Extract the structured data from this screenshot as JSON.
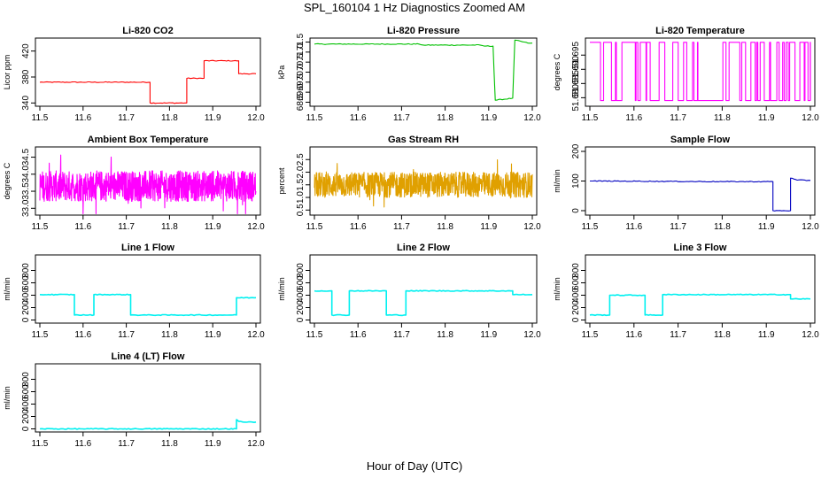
{
  "main_title": "SPL_160104  1 Hz Diagnostics Zoomed AM",
  "x_axis_label": "Hour of Day (UTC)",
  "chart_data": [
    {
      "type": "line",
      "title": "Li-820 CO2",
      "ylabel": "Licor ppm",
      "color": "#ff0000",
      "xlim": [
        11.5,
        12.0
      ],
      "ylim": [
        335,
        440
      ],
      "yticks": [
        "340",
        "380",
        "420"
      ],
      "xticks": [
        "11.5",
        "11.6",
        "11.7",
        "11.8",
        "11.9",
        "12.0"
      ],
      "series": [
        {
          "x": [
            11.5,
            11.755,
            11.755,
            11.84,
            11.84,
            11.88,
            11.88,
            11.96,
            11.96,
            12.0
          ],
          "y": [
            372,
            372,
            340,
            340,
            378,
            378,
            405,
            405,
            385,
            385
          ]
        }
      ]
    },
    {
      "type": "line",
      "title": "Li-820 Pressure",
      "ylabel": "kPa",
      "color": "#00c000",
      "xlim": [
        11.5,
        12.0
      ],
      "ylim": [
        68.3,
        71.7
      ],
      "yticks": [
        "68.5",
        "69.0",
        "69.5",
        "70.0",
        "70.5",
        "71.0",
        "71.5"
      ],
      "xticks": [
        "11.5",
        "11.6",
        "11.7",
        "11.8",
        "11.9",
        "12.0"
      ],
      "series": [
        {
          "x": [
            11.5,
            11.74,
            11.75,
            11.88,
            11.89,
            11.91,
            11.915,
            11.955,
            11.96,
            11.99,
            12.0
          ],
          "y": [
            71.4,
            71.4,
            71.35,
            71.35,
            71.3,
            71.3,
            68.6,
            68.7,
            71.6,
            71.45,
            71.45
          ]
        }
      ]
    },
    {
      "type": "line",
      "title": "Li-820 Temperature",
      "ylabel": "degrees C",
      "color": "#ff00ff",
      "xlim": [
        11.5,
        12.0
      ],
      "ylim": [
        51.677,
        51.701
      ],
      "yticks": [
        "51.680",
        "51.685",
        "51.690",
        "51.695"
      ],
      "xticks": [
        "11.5",
        "11.6",
        "11.7",
        "11.8",
        "11.9",
        "12.0"
      ],
      "series": [
        {
          "x": [
            11.5,
            12.0
          ],
          "y": [
            51.679,
            51.6995
          ]
        }
      ]
    },
    {
      "type": "line",
      "title": "Ambient Box Temperature",
      "ylabel": "degrees C",
      "color": "#ff00ff",
      "xlim": [
        11.5,
        12.0
      ],
      "ylim": [
        32.8,
        34.8
      ],
      "yticks": [
        "33.0",
        "33.5",
        "34.0",
        "34.5"
      ],
      "xticks": [
        "11.5",
        "11.6",
        "11.7",
        "11.8",
        "11.9",
        "12.0"
      ],
      "series": [
        {
          "x": [
            11.5,
            12.0
          ],
          "y": [
            33.2,
            34.1
          ]
        }
      ]
    },
    {
      "type": "line",
      "title": "Gas Stream RH",
      "ylabel": "percent",
      "color": "#e0a000",
      "xlim": [
        11.5,
        12.0
      ],
      "ylim": [
        0.3,
        3.0
      ],
      "yticks": [
        "0.5",
        "1.0",
        "1.5",
        "2.0",
        "2.5"
      ],
      "xticks": [
        "11.5",
        "11.6",
        "11.7",
        "11.8",
        "11.9",
        "12.0"
      ],
      "series": [
        {
          "x": [
            11.5,
            12.0
          ],
          "y": [
            1.0,
            2.0
          ]
        }
      ]
    },
    {
      "type": "line",
      "title": "Sample Flow",
      "ylabel": "ml/min",
      "color": "#0000c0",
      "xlim": [
        11.5,
        12.0
      ],
      "ylim": [
        -15,
        215
      ],
      "yticks": [
        "0",
        "100",
        "200"
      ],
      "xticks": [
        "11.5",
        "11.6",
        "11.7",
        "11.8",
        "11.9",
        "12.0"
      ],
      "series": [
        {
          "x": [
            11.5,
            11.8,
            11.915,
            11.915,
            11.955,
            11.955,
            11.97,
            12.0
          ],
          "y": [
            100,
            98,
            98,
            0,
            0,
            110,
            103,
            102
          ]
        }
      ]
    },
    {
      "type": "line",
      "title": "Line 1 Flow",
      "ylabel": "ml/min",
      "color": "#00f0f0",
      "xlim": [
        11.5,
        12.0
      ],
      "ylim": [
        -50,
        1050
      ],
      "yticks": [
        "0",
        "200",
        "400",
        "600",
        "800"
      ],
      "xticks": [
        "11.5",
        "11.6",
        "11.7",
        "11.8",
        "11.9",
        "12.0"
      ],
      "series": [
        {
          "x": [
            11.5,
            11.58,
            11.58,
            11.625,
            11.625,
            11.71,
            11.71,
            11.955,
            11.955,
            12.0
          ],
          "y": [
            410,
            410,
            80,
            80,
            410,
            410,
            80,
            80,
            360,
            360
          ]
        }
      ]
    },
    {
      "type": "line",
      "title": "Line 2 Flow",
      "ylabel": "ml/min",
      "color": "#00f0f0",
      "xlim": [
        11.5,
        12.0
      ],
      "ylim": [
        -50,
        1050
      ],
      "yticks": [
        "0",
        "200",
        "400",
        "600",
        "800"
      ],
      "xticks": [
        "11.5",
        "11.6",
        "11.7",
        "11.8",
        "11.9",
        "12.0"
      ],
      "series": [
        {
          "x": [
            11.5,
            11.54,
            11.54,
            11.58,
            11.58,
            11.665,
            11.665,
            11.71,
            11.71,
            11.955,
            11.955,
            12.0
          ],
          "y": [
            470,
            470,
            80,
            80,
            470,
            470,
            80,
            80,
            470,
            470,
            410,
            410
          ]
        }
      ]
    },
    {
      "type": "line",
      "title": "Line 3 Flow",
      "ylabel": "ml/min",
      "color": "#00f0f0",
      "xlim": [
        11.5,
        12.0
      ],
      "ylim": [
        -50,
        1050
      ],
      "yticks": [
        "0",
        "200",
        "400",
        "600",
        "800"
      ],
      "xticks": [
        "11.5",
        "11.6",
        "11.7",
        "11.8",
        "11.9",
        "12.0"
      ],
      "series": [
        {
          "x": [
            11.5,
            11.545,
            11.545,
            11.625,
            11.625,
            11.665,
            11.665,
            11.955,
            11.955,
            12.0
          ],
          "y": [
            80,
            80,
            400,
            400,
            80,
            80,
            410,
            410,
            340,
            340
          ]
        }
      ]
    },
    {
      "type": "line",
      "title": "Line 4 (LT) Flow",
      "ylabel": "ml/min",
      "color": "#00f0f0",
      "xlim": [
        11.5,
        12.0
      ],
      "ylim": [
        -50,
        1050
      ],
      "yticks": [
        "0",
        "200",
        "400",
        "600",
        "800"
      ],
      "xticks": [
        "11.5",
        "11.6",
        "11.7",
        "11.8",
        "11.9",
        "12.0"
      ],
      "series": [
        {
          "x": [
            11.5,
            11.955,
            11.955,
            11.96,
            11.97,
            12.0
          ],
          "y": [
            0,
            0,
            150,
            120,
            110,
            110
          ]
        }
      ]
    }
  ]
}
